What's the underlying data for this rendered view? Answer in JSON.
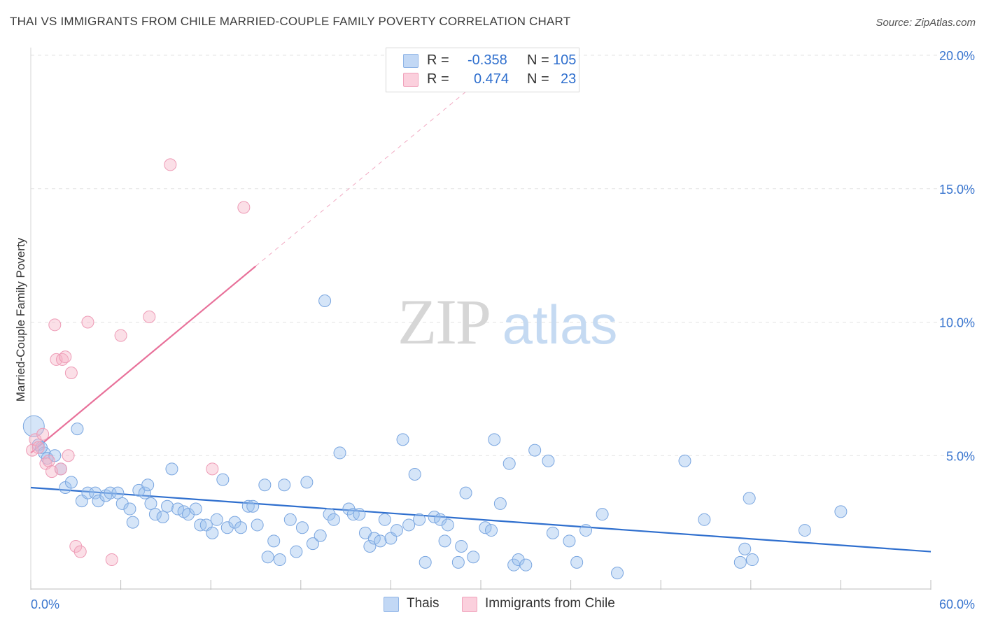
{
  "header": {
    "title": "THAI VS IMMIGRANTS FROM CHILE MARRIED-COUPLE FAMILY POVERTY CORRELATION CHART",
    "source": "Source: ZipAtlas.com"
  },
  "watermark": {
    "zip": "ZIP",
    "atlas": "atlas"
  },
  "stats": [
    {
      "r_label": "R =",
      "r_value": "-0.358",
      "n_label": "N =",
      "n_value": "105",
      "color": "#9cc0ef"
    },
    {
      "r_label": "R =",
      "r_value": "0.474",
      "n_label": "N =",
      "n_value": "23",
      "color": "#f6b3c6"
    }
  ],
  "legend": [
    {
      "label": "Thais",
      "color": "#9cc0ef"
    },
    {
      "label": "Immigrants from Chile",
      "color": "#f6b3c6"
    }
  ],
  "chart_data": {
    "type": "scatter",
    "title": "THAI VS IMMIGRANTS FROM CHILE MARRIED-COUPLE FAMILY POVERTY CORRELATION CHART",
    "xlabel": "",
    "ylabel": "Married-Couple Family Poverty",
    "xlim": [
      0,
      60
    ],
    "ylim": [
      0,
      20
    ],
    "x_tick_labels": [
      {
        "value": 0,
        "label": "0.0%"
      },
      {
        "value": 60,
        "label": "60.0%"
      }
    ],
    "y_tick_labels": [
      {
        "value": 5,
        "label": "5.0%"
      },
      {
        "value": 10,
        "label": "10.0%"
      },
      {
        "value": 15,
        "label": "15.0%"
      },
      {
        "value": 20,
        "label": "20.0%"
      }
    ],
    "grid": true,
    "series": [
      {
        "name": "Thais",
        "color": "#9cc0ef",
        "line_color": "#2f6fce",
        "trend": {
          "x": [
            0,
            60
          ],
          "y": [
            3.8,
            1.4
          ]
        },
        "points": [
          [
            0.2,
            6.1
          ],
          [
            0.5,
            5.4
          ],
          [
            0.9,
            5.1
          ],
          [
            1.1,
            4.9
          ],
          [
            1.6,
            5.0
          ],
          [
            2.0,
            4.5
          ],
          [
            2.3,
            3.8
          ],
          [
            2.7,
            4.0
          ],
          [
            3.1,
            6.0
          ],
          [
            3.4,
            3.3
          ],
          [
            3.8,
            3.6
          ],
          [
            4.3,
            3.6
          ],
          [
            4.5,
            3.3
          ],
          [
            5.0,
            3.5
          ],
          [
            5.3,
            3.6
          ],
          [
            5.8,
            3.6
          ],
          [
            6.1,
            3.2
          ],
          [
            6.6,
            3.0
          ],
          [
            6.8,
            2.5
          ],
          [
            7.2,
            3.7
          ],
          [
            7.6,
            3.6
          ],
          [
            7.8,
            3.9
          ],
          [
            8.0,
            3.2
          ],
          [
            8.3,
            2.8
          ],
          [
            8.8,
            2.7
          ],
          [
            9.1,
            3.1
          ],
          [
            9.4,
            4.5
          ],
          [
            9.8,
            3.0
          ],
          [
            10.2,
            2.9
          ],
          [
            10.5,
            2.8
          ],
          [
            11.0,
            3.0
          ],
          [
            11.3,
            2.4
          ],
          [
            11.7,
            2.4
          ],
          [
            12.1,
            2.1
          ],
          [
            12.4,
            2.6
          ],
          [
            12.8,
            4.1
          ],
          [
            13.1,
            2.3
          ],
          [
            13.6,
            2.5
          ],
          [
            14.0,
            2.3
          ],
          [
            14.5,
            3.1
          ],
          [
            14.8,
            3.1
          ],
          [
            15.1,
            2.4
          ],
          [
            15.6,
            3.9
          ],
          [
            15.8,
            1.2
          ],
          [
            16.2,
            1.8
          ],
          [
            16.6,
            1.1
          ],
          [
            16.9,
            3.9
          ],
          [
            17.3,
            2.6
          ],
          [
            17.7,
            1.4
          ],
          [
            18.1,
            2.3
          ],
          [
            18.4,
            4.0
          ],
          [
            18.8,
            1.7
          ],
          [
            19.3,
            2.0
          ],
          [
            19.6,
            10.8
          ],
          [
            19.9,
            2.8
          ],
          [
            20.2,
            2.6
          ],
          [
            20.6,
            5.1
          ],
          [
            21.2,
            3.0
          ],
          [
            21.5,
            2.8
          ],
          [
            21.9,
            2.8
          ],
          [
            22.3,
            2.1
          ],
          [
            22.6,
            1.6
          ],
          [
            22.9,
            1.9
          ],
          [
            23.3,
            1.8
          ],
          [
            23.6,
            2.6
          ],
          [
            24.0,
            1.9
          ],
          [
            24.4,
            2.2
          ],
          [
            24.8,
            5.6
          ],
          [
            25.2,
            2.4
          ],
          [
            25.6,
            4.3
          ],
          [
            25.9,
            2.6
          ],
          [
            26.3,
            1.0
          ],
          [
            26.9,
            2.7
          ],
          [
            27.3,
            2.6
          ],
          [
            27.6,
            1.8
          ],
          [
            27.8,
            2.4
          ],
          [
            28.5,
            1.0
          ],
          [
            28.7,
            1.6
          ],
          [
            29.0,
            3.6
          ],
          [
            29.5,
            1.2
          ],
          [
            30.3,
            2.3
          ],
          [
            30.7,
            2.2
          ],
          [
            30.9,
            5.6
          ],
          [
            31.3,
            3.2
          ],
          [
            31.9,
            4.7
          ],
          [
            32.2,
            0.9
          ],
          [
            32.5,
            1.1
          ],
          [
            33.0,
            0.9
          ],
          [
            33.6,
            5.2
          ],
          [
            34.5,
            4.8
          ],
          [
            34.8,
            2.1
          ],
          [
            35.9,
            1.8
          ],
          [
            36.4,
            1.0
          ],
          [
            37.0,
            2.2
          ],
          [
            38.1,
            2.8
          ],
          [
            39.1,
            0.6
          ],
          [
            43.6,
            4.8
          ],
          [
            44.9,
            2.6
          ],
          [
            47.3,
            1.0
          ],
          [
            47.6,
            1.5
          ],
          [
            47.9,
            3.4
          ],
          [
            48.1,
            1.1
          ],
          [
            51.6,
            2.2
          ],
          [
            54.0,
            2.9
          ],
          [
            0.7,
            5.3
          ]
        ]
      },
      {
        "name": "Immigrants from Chile",
        "color": "#f6b3c6",
        "line_color": "#e8719a",
        "trend": {
          "x": [
            0,
            15
          ],
          "y": [
            5.1,
            12.1
          ]
        },
        "trend_dashed": {
          "x": [
            15,
            30
          ],
          "y": [
            12.1,
            19.1
          ]
        },
        "points": [
          [
            0.1,
            5.2
          ],
          [
            0.3,
            5.6
          ],
          [
            0.5,
            5.3
          ],
          [
            0.8,
            5.8
          ],
          [
            1.0,
            4.7
          ],
          [
            1.2,
            4.8
          ],
          [
            1.4,
            4.4
          ],
          [
            1.6,
            9.9
          ],
          [
            1.7,
            8.6
          ],
          [
            2.0,
            4.5
          ],
          [
            2.1,
            8.6
          ],
          [
            2.3,
            8.7
          ],
          [
            2.5,
            5.0
          ],
          [
            2.7,
            8.1
          ],
          [
            3.0,
            1.6
          ],
          [
            3.3,
            1.4
          ],
          [
            3.8,
            10.0
          ],
          [
            5.4,
            1.1
          ],
          [
            6.0,
            9.5
          ],
          [
            7.9,
            10.2
          ],
          [
            9.3,
            15.9
          ],
          [
            12.1,
            4.5
          ],
          [
            14.2,
            14.3
          ]
        ]
      }
    ]
  }
}
